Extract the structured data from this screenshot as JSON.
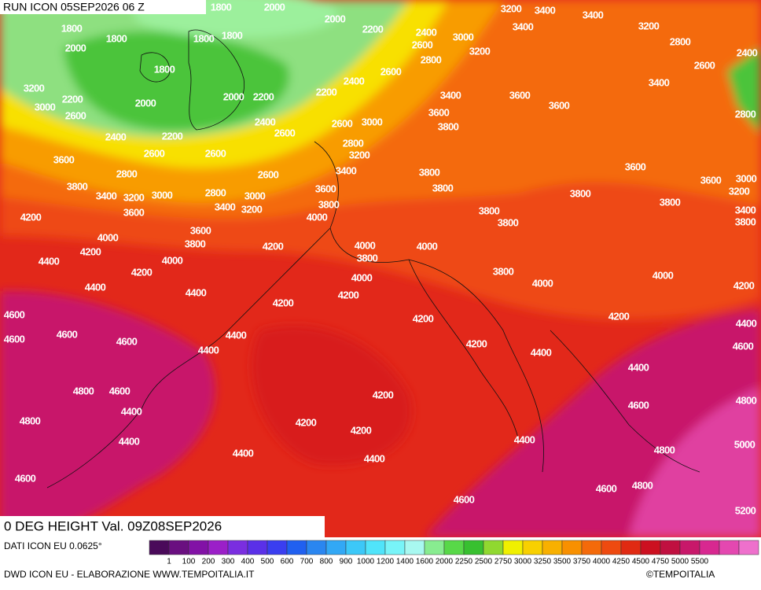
{
  "header": {
    "run": "RUN ICON 05SEP2026 06 Z"
  },
  "map": {
    "field": "0 DEG HEIGHT Val. 09Z08SEP2026",
    "contour_labels": [
      1800,
      2000,
      1800,
      1800,
      1800,
      1800,
      2000,
      2000,
      2200,
      2400,
      2600,
      2800,
      3000,
      3200,
      3200,
      3400,
      3400,
      3400,
      3200,
      2800,
      2400,
      2600,
      1800,
      3200,
      2200,
      2000,
      2000,
      2200,
      2200,
      2400,
      2600,
      3400,
      3600,
      3600,
      3400,
      2800,
      3000,
      2600,
      2400,
      2600,
      2600,
      3000,
      3600,
      3800,
      2400,
      2200,
      2800,
      3200,
      3600,
      2600,
      2600,
      3400,
      2800,
      2600,
      3800,
      3600,
      3600,
      3000,
      3800,
      3400,
      3200,
      3000,
      2800,
      3000,
      3600,
      3800,
      3800,
      3200,
      3400,
      3200,
      3800,
      3600,
      3800,
      3400,
      4200,
      4000,
      3800,
      3800,
      3800,
      3600,
      4000,
      3800,
      4200,
      4000,
      4000,
      4200,
      4400,
      4000,
      3800,
      4200,
      3800,
      4000,
      4000,
      4000,
      4200,
      4400,
      4400,
      4200,
      4200,
      4600,
      4200,
      4200,
      4400,
      4600,
      4600,
      4600,
      4400,
      4400,
      4200,
      4400,
      4600,
      4400,
      4800,
      4600,
      4200,
      4600,
      4800,
      4400,
      4800,
      4200,
      4200,
      4400,
      4400,
      5000,
      4400,
      4400,
      4800,
      4600,
      4800,
      4600,
      4600,
      5200
    ]
  },
  "legend": {
    "source": "DATI ICON EU 0.0625°",
    "colors": [
      "#4a0a5a",
      "#6a0f80",
      "#8212a6",
      "#9b1fc8",
      "#7a2ee0",
      "#5a30e8",
      "#3a3ef0",
      "#2060f0",
      "#2a86f0",
      "#32a8f5",
      "#3cc8f8",
      "#50e4fa",
      "#78f4f8",
      "#a8f8f0",
      "#88ec90",
      "#58d848",
      "#38c030",
      "#90d830",
      "#f0f000",
      "#f8d000",
      "#f8b000",
      "#f89000",
      "#f46a0a",
      "#ee4a10",
      "#e02a12",
      "#cc1020",
      "#c01040",
      "#c8186a",
      "#d82890",
      "#e448b0",
      "#ee70cc"
    ],
    "labels": [
      "1",
      "100",
      "200",
      "300",
      "400",
      "500",
      "600",
      "700",
      "800",
      "900",
      "1000",
      "1200",
      "1400",
      "1600",
      "2000",
      "2250",
      "2500",
      "2750",
      "3000",
      "3250",
      "3500",
      "3750",
      "4000",
      "4250",
      "4500",
      "4750",
      "5000",
      "5500"
    ]
  },
  "footer": {
    "credit": "DWD ICON EU - ELABORAZIONE WWW.TEMPOITALIA.IT",
    "copyright": "©TEMPOITALIA"
  }
}
